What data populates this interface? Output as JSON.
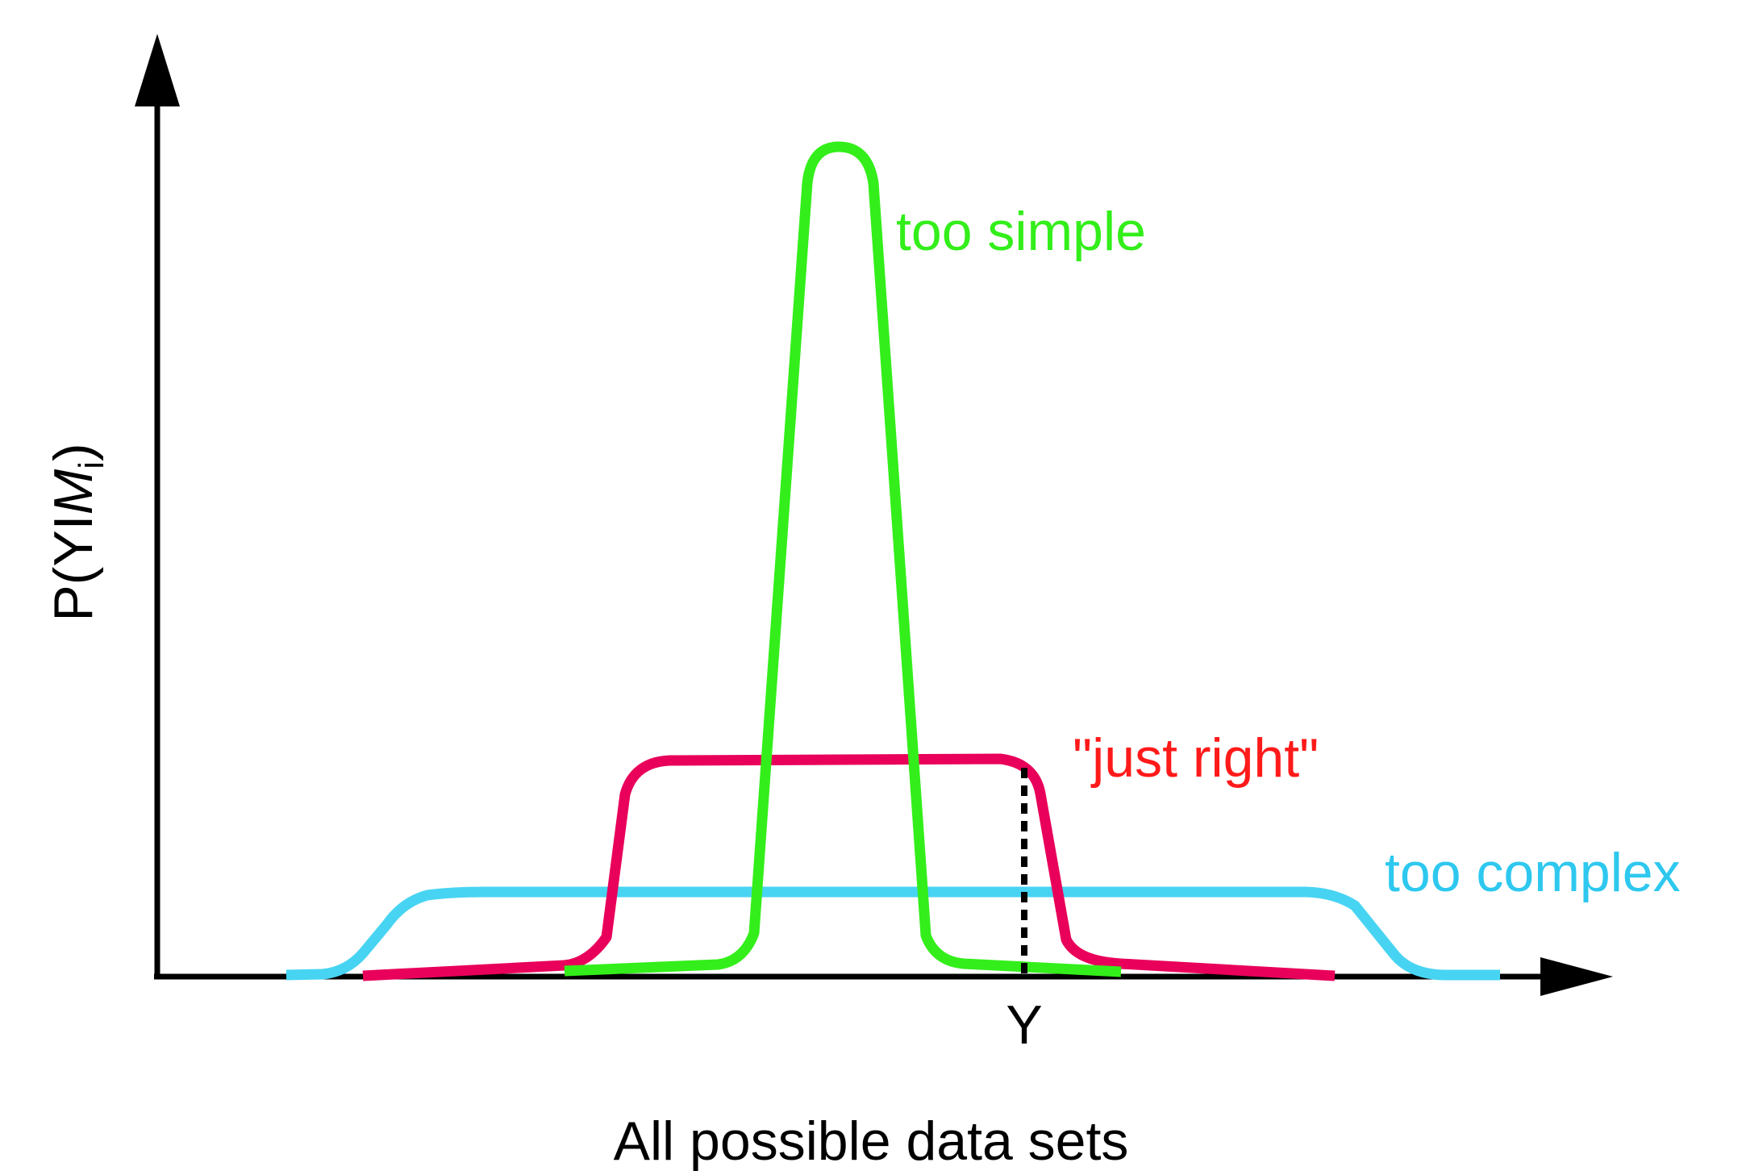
{
  "figure": {
    "y_axis_label": {
      "prefix": "P(Y",
      "separator": "I",
      "model": "M",
      "subscript": "i",
      "suffix": ")"
    },
    "x_axis_label": "All possible data sets",
    "observed_point_label": "Y"
  },
  "curves": [
    {
      "name": "too simple",
      "label": "too simple",
      "color": "#33ee1a"
    },
    {
      "name": "just right",
      "label": "\"just right\"",
      "color": "#e8005a",
      "label_color": "#ff1a1a"
    },
    {
      "name": "too complex",
      "label": "too complex",
      "color": "#47d4f2",
      "label_color": "#2ec8ef"
    }
  ],
  "colors": {
    "axis": "#000000",
    "marker": "#000000"
  }
}
